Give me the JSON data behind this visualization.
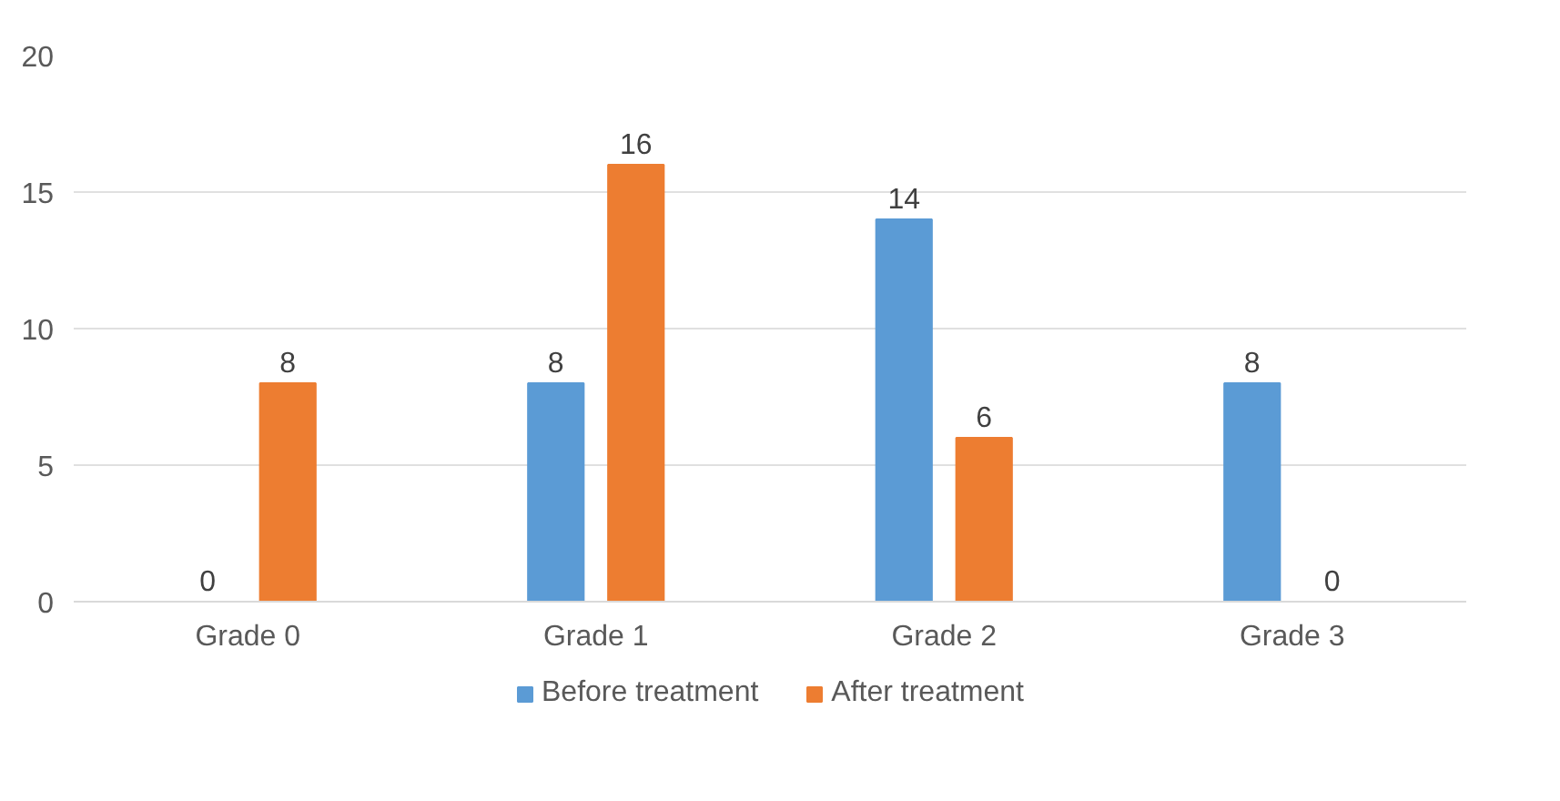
{
  "chart_data": {
    "type": "bar",
    "categories": [
      "Grade 0",
      "Grade 1",
      "Grade 2",
      "Grade 3"
    ],
    "series": [
      {
        "name": "Before treatment",
        "color": "#5b9bd5",
        "values": [
          0,
          8,
          14,
          8
        ]
      },
      {
        "name": "After treatment",
        "color": "#ed7d31",
        "values": [
          8,
          16,
          6,
          0
        ]
      }
    ],
    "ylim": [
      0,
      20
    ],
    "yticks": [
      0,
      5,
      10,
      15,
      20
    ],
    "grid": "y",
    "legend": "bottom",
    "data_labels": true
  }
}
